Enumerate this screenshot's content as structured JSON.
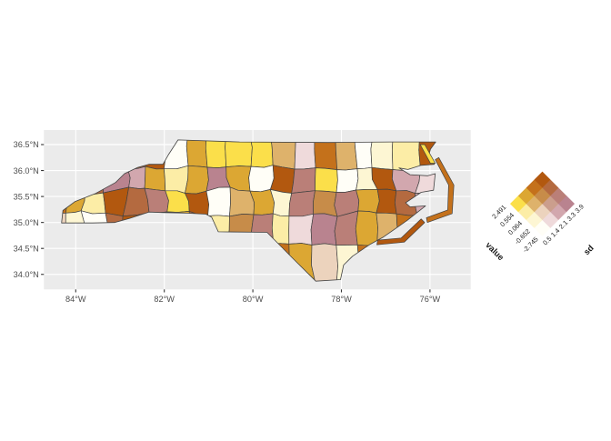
{
  "figure": {
    "background": "#ffffff",
    "panel_fill": "#ebebeb",
    "gridline_color": "#ffffff",
    "tick_color": "#333333",
    "axis_label_color": "#4d4d4d",
    "county_border_color": "#424242"
  },
  "axes": {
    "x": {
      "tick_labels": [
        "84°W",
        "82°W",
        "80°W",
        "78°W",
        "76°W"
      ],
      "tick_lons": [
        -84,
        -82,
        -80,
        -78,
        -76
      ]
    },
    "y": {
      "tick_labels": [
        "36.5°N",
        "36.0°N",
        "35.5°N",
        "35.0°N",
        "34.5°N",
        "34.0°N"
      ],
      "tick_lats": [
        36.5,
        36.0,
        35.5,
        35.0,
        34.5,
        34.0
      ]
    }
  },
  "legend": {
    "value_title": "value",
    "sd_title": "sd",
    "value_break_labels": [
      "-2.745",
      "-0.652",
      "0.064",
      "0.554",
      "2.491"
    ],
    "sd_break_labels": [
      "0.5",
      "1.4",
      "2.1",
      "3.3",
      "3.9"
    ],
    "label_color": "#1a1a1a"
  },
  "chart_data": {
    "type": "choropleth_map",
    "region": "North Carolina counties",
    "variables": [
      "value",
      "sd"
    ],
    "value_breaks": [
      -2.745,
      -0.652,
      0.064,
      0.554,
      2.491
    ],
    "sd_breaks": [
      0.5,
      1.4,
      2.1,
      3.3,
      3.9
    ],
    "bivariate_palette": {
      "v4s1": "#fbdf4a",
      "v4s2": "#dca733",
      "v4s3": "#c4711b",
      "v4s4": "#b2580f",
      "v3s1": "#fceda6",
      "v3s2": "#deb26b",
      "v3s3": "#c78c49",
      "v3s4": "#b46a40",
      "v2s1": "#fdf6d3",
      "v2s2": "#ecd3bd",
      "v2s3": "#cb9e8d",
      "v2s4": "#ba7f78",
      "v1s1": "#fffef7",
      "v1s2": "#efdadb",
      "v1s3": "#d2a7ae",
      "v1s4": "#b9838f"
    },
    "county_class_grid_note": "rows north-to-south, cols west-to-east; code = value-class (1-4) then sd-class (1-4)",
    "county_class_grid": [
      [
        "43",
        "34",
        "42",
        "44",
        "34",
        "44",
        "11",
        "42",
        "41",
        "41",
        "41",
        "32",
        "12",
        "43",
        "32",
        "11",
        "21",
        "31",
        "44",
        "44"
      ],
      [
        "24",
        "42",
        "34",
        "14",
        "13",
        "42",
        "31",
        "42",
        "14",
        "42",
        "11",
        "44",
        "24",
        "41",
        "11",
        "21",
        "44",
        "13",
        "12",
        "33"
      ],
      [
        "43",
        "42",
        "31",
        "44",
        "34",
        "24",
        "41",
        "44",
        "11",
        "32",
        "42",
        "21",
        "24",
        "33",
        "24",
        "42",
        "44",
        "34",
        "13",
        "44"
      ],
      [
        "22",
        "21",
        "11",
        "34",
        "44",
        "13",
        "42",
        "34",
        "31",
        "33",
        "24",
        "31",
        "12",
        "14",
        "24",
        "42",
        "32",
        "43",
        "33",
        "14"
      ],
      [
        "21",
        "11",
        "32",
        "44",
        "24",
        "13",
        "42",
        "34",
        "41",
        "41",
        "32",
        "43",
        "42",
        "22",
        "21",
        "43",
        "34",
        "24",
        "44",
        "43"
      ]
    ],
    "coastal_features": [
      {
        "name": "currituck-banks",
        "class": "41"
      },
      {
        "name": "outer-banks",
        "class": "43"
      },
      {
        "name": "core-banks",
        "class": "44"
      }
    ]
  }
}
